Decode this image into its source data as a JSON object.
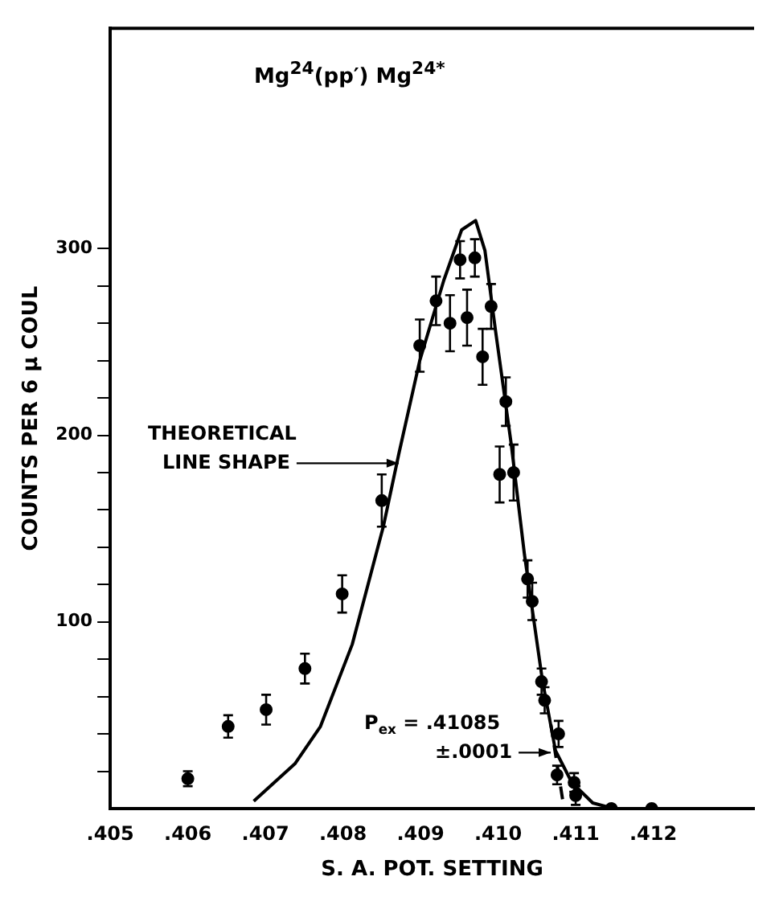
{
  "chart_data": {
    "type": "scatter",
    "title": "Mg$^{24}$(pp′) Mg$^{24*}$",
    "xlabel": "S. A. POT. SETTING",
    "ylabel": "COUNTS PER 6 μ COUL",
    "xlim": [
      0.405,
      0.4133
    ],
    "ylim": [
      0,
      418
    ],
    "xticks": [
      {
        "value": 0.405,
        "label": ".405"
      },
      {
        "value": 0.406,
        "label": ".406"
      },
      {
        "value": 0.407,
        "label": ".407"
      },
      {
        "value": 0.408,
        "label": ".408"
      },
      {
        "value": 0.409,
        "label": ".409"
      },
      {
        "value": 0.41,
        "label": ".410"
      },
      {
        "value": 0.411,
        "label": ".411"
      },
      {
        "value": 0.412,
        "label": ".412"
      }
    ],
    "yticks": [
      {
        "value": 20,
        "label": null
      },
      {
        "value": 40,
        "label": null
      },
      {
        "value": 60,
        "label": null
      },
      {
        "value": 80,
        "label": null
      },
      100,
      {
        "value": 120,
        "label": null
      },
      {
        "value": 140,
        "label": null
      },
      {
        "value": 160,
        "label": null
      },
      {
        "value": 180,
        "label": null
      },
      200,
      {
        "value": 220,
        "label": null
      },
      {
        "value": 240,
        "label": null
      },
      {
        "value": 260,
        "label": null
      },
      {
        "value": 280,
        "label": null
      },
      300
    ],
    "grid": false,
    "legend": false,
    "marker": "circle",
    "series": [
      {
        "type": "scatter",
        "color": "#000000",
        "x": [
          0.406,
          0.40652,
          0.40701,
          0.40751,
          0.40799,
          0.4085,
          0.40899,
          0.4092,
          0.40938,
          0.40951,
          0.4097,
          0.4096,
          0.4098,
          0.40991,
          0.4101,
          0.41002,
          0.4102,
          0.41038,
          0.41044,
          0.41056,
          0.4106,
          0.41078,
          0.41076,
          0.41098,
          0.411,
          0.41146,
          0.41198
        ],
        "values": [
          16,
          44,
          53,
          75,
          115,
          165,
          248,
          272,
          260,
          294,
          295,
          263,
          242,
          269,
          218,
          179,
          180,
          123,
          111,
          68,
          58,
          40,
          18,
          14,
          7,
          0,
          0
        ],
        "errors": [
          4,
          6,
          8,
          8,
          10,
          14,
          14,
          13,
          15,
          10,
          10,
          15,
          15,
          12,
          13,
          15,
          15,
          10,
          10,
          7,
          7,
          7,
          5,
          5,
          5,
          null,
          null
        ]
      },
      {
        "type": "line",
        "color": "#000000",
        "marker": "none",
        "x": [
          0.40685,
          0.40738,
          0.40771,
          0.40812,
          0.40852,
          0.40872,
          0.40899,
          0.4093,
          0.40953,
          0.40971,
          0.40983,
          0.40997,
          0.41017,
          0.41034,
          0.41057,
          0.41074,
          0.41095,
          0.41122,
          0.41149,
          0.4133
        ],
        "values": [
          4,
          24,
          44,
          88,
          151,
          190,
          240,
          283,
          310,
          315,
          299,
          255,
          195,
          136,
          69,
          31,
          14,
          3,
          0,
          0
        ]
      },
      {
        "type": "line",
        "color": "#000000",
        "marker": "none",
        "line_style": "dashed",
        "x": [
          0.41068,
          0.41085
        ],
        "values": [
          45,
          0
        ]
      }
    ],
    "annotations": [
      {
        "text": "THEORETICAL LINE SHAPE",
        "x": 0.40876,
        "y": 185
      },
      {
        "text": "P$_{ex}$ = .41085 ±.0001",
        "x": 0.41072,
        "y": 30
      }
    ]
  }
}
